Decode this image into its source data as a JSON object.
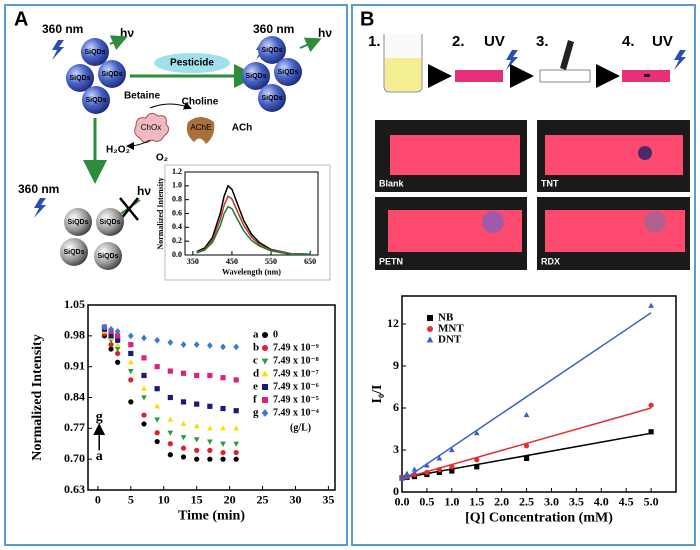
{
  "panel_a": {
    "label": "A",
    "schematic": {
      "wavelength": "360 nm",
      "light": "hν",
      "dot": "SiQDs",
      "analyte": "Pesticide",
      "betaine": "Betaine",
      "choline": "Choline",
      "chox": "ChOx",
      "ache": "AChE",
      "ach": "ACh",
      "h2o2": "H₂O₂",
      "o2": "O₂"
    },
    "inset": {
      "type": "line",
      "x_label": "Wavelength (nm)",
      "y_label": "Normalized Intensity",
      "x": [
        360,
        380,
        400,
        420,
        430,
        440,
        450,
        460,
        480,
        500,
        520,
        550,
        600,
        650
      ],
      "series": [
        {
          "color": "#000000",
          "values": [
            0.05,
            0.1,
            0.25,
            0.6,
            0.85,
            1.0,
            0.95,
            0.8,
            0.5,
            0.3,
            0.18,
            0.08,
            0.02,
            0.01
          ]
        },
        {
          "color": "#c0392b",
          "values": [
            0.04,
            0.08,
            0.21,
            0.51,
            0.72,
            0.85,
            0.81,
            0.68,
            0.43,
            0.26,
            0.15,
            0.07,
            0.02,
            0.01
          ]
        },
        {
          "color": "#1e7b3a",
          "values": [
            0.03,
            0.07,
            0.18,
            0.42,
            0.6,
            0.7,
            0.67,
            0.56,
            0.35,
            0.21,
            0.13,
            0.06,
            0.01,
            0.01
          ]
        }
      ],
      "xlim": [
        330,
        670
      ],
      "xticks": [
        350,
        450,
        550,
        650
      ],
      "ylim": [
        0,
        1.2
      ],
      "yticks": [
        {
          "value": 0,
          "label": "0.0"
        },
        0.2,
        0.4,
        0.6,
        0.8,
        {
          "value": 1,
          "label": "1.0"
        },
        1.2
      ]
    },
    "chart": {
      "type": "scatter",
      "x_label": "Time (min)",
      "y_label": "Normalized Intensity",
      "x": [
        1,
        2,
        3,
        5,
        7,
        9,
        11,
        13,
        15,
        17,
        19,
        21
      ],
      "series": [
        {
          "name": "a",
          "label": "0",
          "color": "#000000",
          "marker": "circle",
          "values": [
            0.98,
            0.95,
            0.92,
            0.83,
            0.78,
            0.74,
            0.71,
            0.705,
            0.7,
            0.7,
            0.7,
            0.7
          ]
        },
        {
          "name": "b",
          "label": "7.49 x 10⁻⁹",
          "color": "#e0202a",
          "marker": "circle",
          "values": [
            0.985,
            0.96,
            0.94,
            0.88,
            0.8,
            0.76,
            0.735,
            0.725,
            0.72,
            0.72,
            0.715,
            0.715
          ]
        },
        {
          "name": "c",
          "label": "7.49 x 10⁻⁸",
          "color": "#2a9d3a",
          "marker": "triangle-down",
          "values": [
            0.99,
            0.97,
            0.95,
            0.9,
            0.84,
            0.79,
            0.76,
            0.75,
            0.745,
            0.74,
            0.735,
            0.735
          ]
        },
        {
          "name": "d",
          "label": "7.49 x 10⁻⁷",
          "color": "#f2e200",
          "marker": "triangle-up",
          "values": [
            0.99,
            0.975,
            0.96,
            0.92,
            0.86,
            0.82,
            0.79,
            0.78,
            0.775,
            0.77,
            0.77,
            0.77
          ]
        },
        {
          "name": "e",
          "label": "7.49 x 10⁻⁶",
          "color": "#1a1a7a",
          "marker": "square",
          "values": [
            0.995,
            0.98,
            0.97,
            0.94,
            0.89,
            0.86,
            0.84,
            0.83,
            0.825,
            0.82,
            0.815,
            0.81
          ]
        },
        {
          "name": "f",
          "label": "7.49 x 10⁻⁵",
          "color": "#e0207a",
          "marker": "square",
          "values": [
            1.0,
            0.99,
            0.98,
            0.96,
            0.93,
            0.91,
            0.9,
            0.895,
            0.89,
            0.89,
            0.885,
            0.88
          ]
        },
        {
          "name": "g",
          "label": "7.49 x 10⁻⁴",
          "color": "#3a78d8",
          "marker": "diamond",
          "values": [
            1.0,
            0.995,
            0.99,
            0.98,
            0.975,
            0.97,
            0.965,
            0.96,
            0.96,
            0.958,
            0.955,
            0.955
          ]
        }
      ],
      "legend_unit": "(g/L)",
      "annotation_top": "g",
      "annotation_bottom": "a",
      "legend": "right",
      "xlim": [
        -1.5,
        36
      ],
      "xticks": [
        0,
        5,
        10,
        15,
        20,
        25,
        30,
        35
      ],
      "ylim": [
        0.63,
        1.05
      ],
      "yticks": [
        0.63,
        {
          "value": 0.7,
          "label": "0.70"
        },
        0.77,
        0.84,
        0.91,
        0.98,
        1.05
      ]
    }
  },
  "panel_b": {
    "label": "B",
    "steps": [
      "1.",
      "2.",
      "3.",
      "4."
    ],
    "uv": "UV",
    "photos": [
      "Blank",
      "TNT",
      "PETN",
      "RDX"
    ],
    "chart": {
      "type": "scatter",
      "x_label": "[Q] Concentration (mM)",
      "y_label": "I₀/I",
      "x": [
        0,
        0.1,
        0.25,
        0.5,
        0.75,
        1.0,
        1.5,
        2.5,
        5.0
      ],
      "fit_x": [
        0,
        5.0
      ],
      "series": [
        {
          "name": "NB",
          "color": "#000000",
          "marker": "square",
          "values": [
            1.0,
            1.05,
            1.1,
            1.25,
            1.4,
            1.5,
            1.8,
            2.4,
            4.3
          ],
          "fit_values": [
            1.0,
            4.2
          ]
        },
        {
          "name": "MNT",
          "color": "#e03030",
          "marker": "circle",
          "values": [
            1.0,
            1.1,
            1.25,
            1.4,
            1.6,
            1.8,
            2.3,
            3.3,
            6.2
          ],
          "fit_values": [
            0.95,
            6.0
          ]
        },
        {
          "name": "DNT",
          "color": "#3a5fc8",
          "marker": "triangle-up",
          "values": [
            1.0,
            1.3,
            1.6,
            1.9,
            2.4,
            3.0,
            4.2,
            5.5,
            13.3
          ],
          "fit_values": [
            0.8,
            12.8
          ]
        }
      ],
      "legend": "upper left",
      "xlim": [
        0,
        5.5
      ],
      "xticks": [
        {
          "value": 0,
          "label": "0.0"
        },
        0.5,
        {
          "value": 1,
          "label": "1.0"
        },
        1.5,
        {
          "value": 2,
          "label": "2.0"
        },
        2.5,
        {
          "value": 3,
          "label": "3.0"
        },
        3.5,
        {
          "value": 4,
          "label": "4.0"
        },
        4.5,
        {
          "value": 5,
          "label": "5.0"
        }
      ],
      "ylim": [
        0,
        14
      ],
      "yticks": [
        0,
        3,
        6,
        9,
        12
      ]
    }
  }
}
